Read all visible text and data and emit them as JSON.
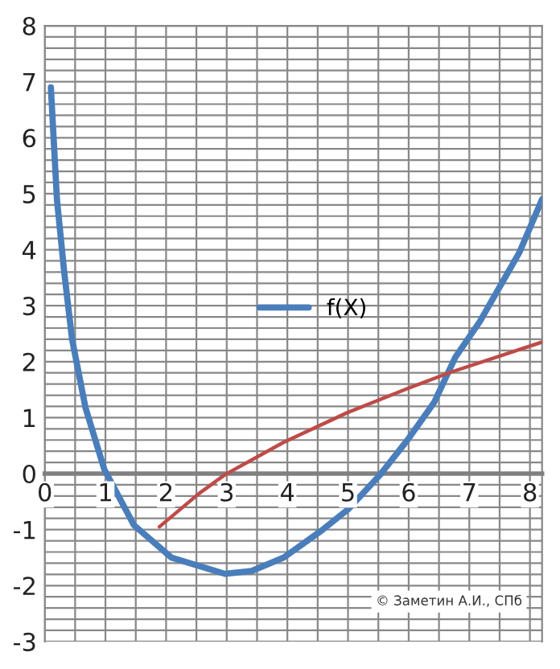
{
  "chart_data": {
    "type": "line",
    "series": [
      {
        "name": "f(X)",
        "color": "#4a7ebb",
        "x": [
          0.1,
          0.2,
          0.32,
          0.45,
          0.67,
          0.98,
          1.47,
          2.09,
          2.97,
          3.41,
          3.94,
          4.56,
          5.0,
          5.53,
          5.98,
          6.42,
          6.77,
          7.17,
          7.53,
          7.83,
          8.2
        ],
        "values": [
          6.9,
          4.9,
          3.6,
          2.4,
          1.18,
          0.08,
          -0.92,
          -1.5,
          -1.79,
          -1.74,
          -1.5,
          -1.02,
          -0.64,
          -0.02,
          0.6,
          1.27,
          2.08,
          2.71,
          3.39,
          3.96,
          4.9
        ]
      },
      {
        "color": "#be4b48",
        "x": [
          1.89,
          2.55,
          2.97,
          3.94,
          4.99,
          5.98,
          6.69,
          8.2
        ],
        "values": [
          -0.95,
          -0.35,
          -0.02,
          0.56,
          1.09,
          1.52,
          1.81,
          2.35
        ]
      }
    ],
    "xlim": [
      0,
      8.2
    ],
    "ylim": [
      -3,
      8
    ],
    "xticks": [
      0,
      {
        "value": 0.5,
        "label": null
      },
      1,
      {
        "value": 1.5,
        "label": null
      },
      2,
      {
        "value": 2.5,
        "label": null
      },
      3,
      {
        "value": 3.5,
        "label": null
      },
      4,
      {
        "value": 4.5,
        "label": null
      },
      5,
      {
        "value": 5.5,
        "label": null
      },
      6,
      {
        "value": 6.5,
        "label": null
      },
      7,
      {
        "value": 7.5,
        "label": null
      },
      8
    ],
    "yticks": [
      -3,
      {
        "value": -2.8,
        "label": null
      },
      {
        "value": -2.6,
        "label": null
      },
      {
        "value": -2.4,
        "label": null
      },
      {
        "value": -2.2,
        "label": null
      },
      -2,
      {
        "value": -1.8,
        "label": null
      },
      {
        "value": -1.6,
        "label": null
      },
      {
        "value": -1.4,
        "label": null
      },
      {
        "value": -1.2,
        "label": null
      },
      -1,
      {
        "value": -0.8,
        "label": null
      },
      {
        "value": -0.6,
        "label": null
      },
      {
        "value": -0.4,
        "label": null
      },
      {
        "value": -0.2,
        "label": null
      },
      0,
      {
        "value": 0.2,
        "label": null
      },
      {
        "value": 0.4,
        "label": null
      },
      {
        "value": 0.6,
        "label": null
      },
      {
        "value": 0.8,
        "label": null
      },
      1,
      {
        "value": 1.2,
        "label": null
      },
      {
        "value": 1.4,
        "label": null
      },
      {
        "value": 1.6,
        "label": null
      },
      {
        "value": 1.8,
        "label": null
      },
      2,
      {
        "value": 2.2,
        "label": null
      },
      {
        "value": 2.4,
        "label": null
      },
      {
        "value": 2.6,
        "label": null
      },
      {
        "value": 2.8,
        "label": null
      },
      3,
      {
        "value": 3.2,
        "label": null
      },
      {
        "value": 3.4,
        "label": null
      },
      {
        "value": 3.6,
        "label": null
      },
      {
        "value": 3.8,
        "label": null
      },
      4,
      {
        "value": 4.2,
        "label": null
      },
      {
        "value": 4.4,
        "label": null
      },
      {
        "value": 4.6,
        "label": null
      },
      {
        "value": 4.8,
        "label": null
      },
      5,
      {
        "value": 5.2,
        "label": null
      },
      {
        "value": 5.4,
        "label": null
      },
      {
        "value": 5.6,
        "label": null
      },
      {
        "value": 5.8,
        "label": null
      },
      6,
      {
        "value": 6.2,
        "label": null
      },
      {
        "value": 6.4,
        "label": null
      },
      {
        "value": 6.6,
        "label": null
      },
      {
        "value": 6.8,
        "label": null
      },
      7,
      {
        "value": 7.2,
        "label": null
      },
      {
        "value": 7.4,
        "label": null
      },
      {
        "value": 7.6,
        "label": null
      },
      {
        "value": 7.8,
        "label": null
      },
      8
    ],
    "grid": true,
    "legend": "center",
    "marker": "none",
    "line_style": "solid",
    "annotations": [
      "© Заметин А.И., СПб"
    ]
  }
}
